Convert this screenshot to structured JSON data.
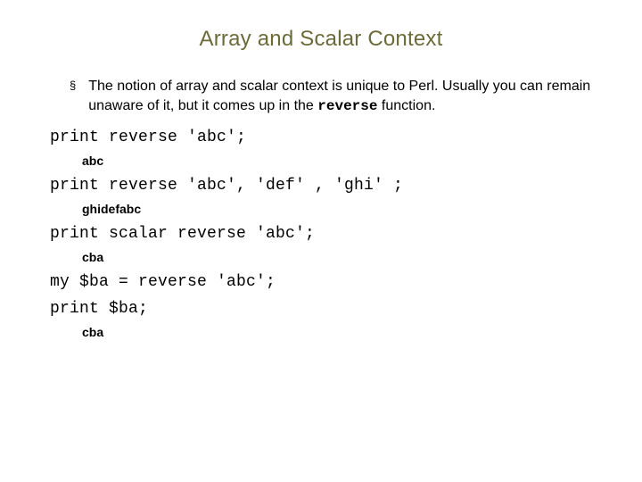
{
  "title": {
    "text": "Array and Scalar Context",
    "color": "#6b6b3a",
    "fontsize": 24
  },
  "bullet": {
    "marker": "§",
    "text_before": "The notion of array and scalar context is unique to Perl. Usually you can remain unaware of it, but it comes up in the ",
    "mono_word": "reverse",
    "text_after": " function.",
    "fontsize": 16,
    "color": "#000000"
  },
  "lines": [
    {
      "type": "code",
      "text": "print reverse 'abc';"
    },
    {
      "type": "output",
      "text": "abc"
    },
    {
      "type": "code",
      "text": "print reverse 'abc', 'def' , 'ghi' ;"
    },
    {
      "type": "output",
      "text": "ghidefabc"
    },
    {
      "type": "code",
      "text": "print scalar reverse 'abc';"
    },
    {
      "type": "output",
      "text": "cba"
    },
    {
      "type": "code",
      "text": "my $ba = reverse 'abc';"
    },
    {
      "type": "code",
      "text": "print $ba;"
    },
    {
      "type": "output",
      "text": "cba"
    }
  ],
  "styles": {
    "code_fontsize": 18,
    "code_font": "Courier New",
    "output_fontsize": 14,
    "output_weight": "bold",
    "background": "#ffffff"
  }
}
